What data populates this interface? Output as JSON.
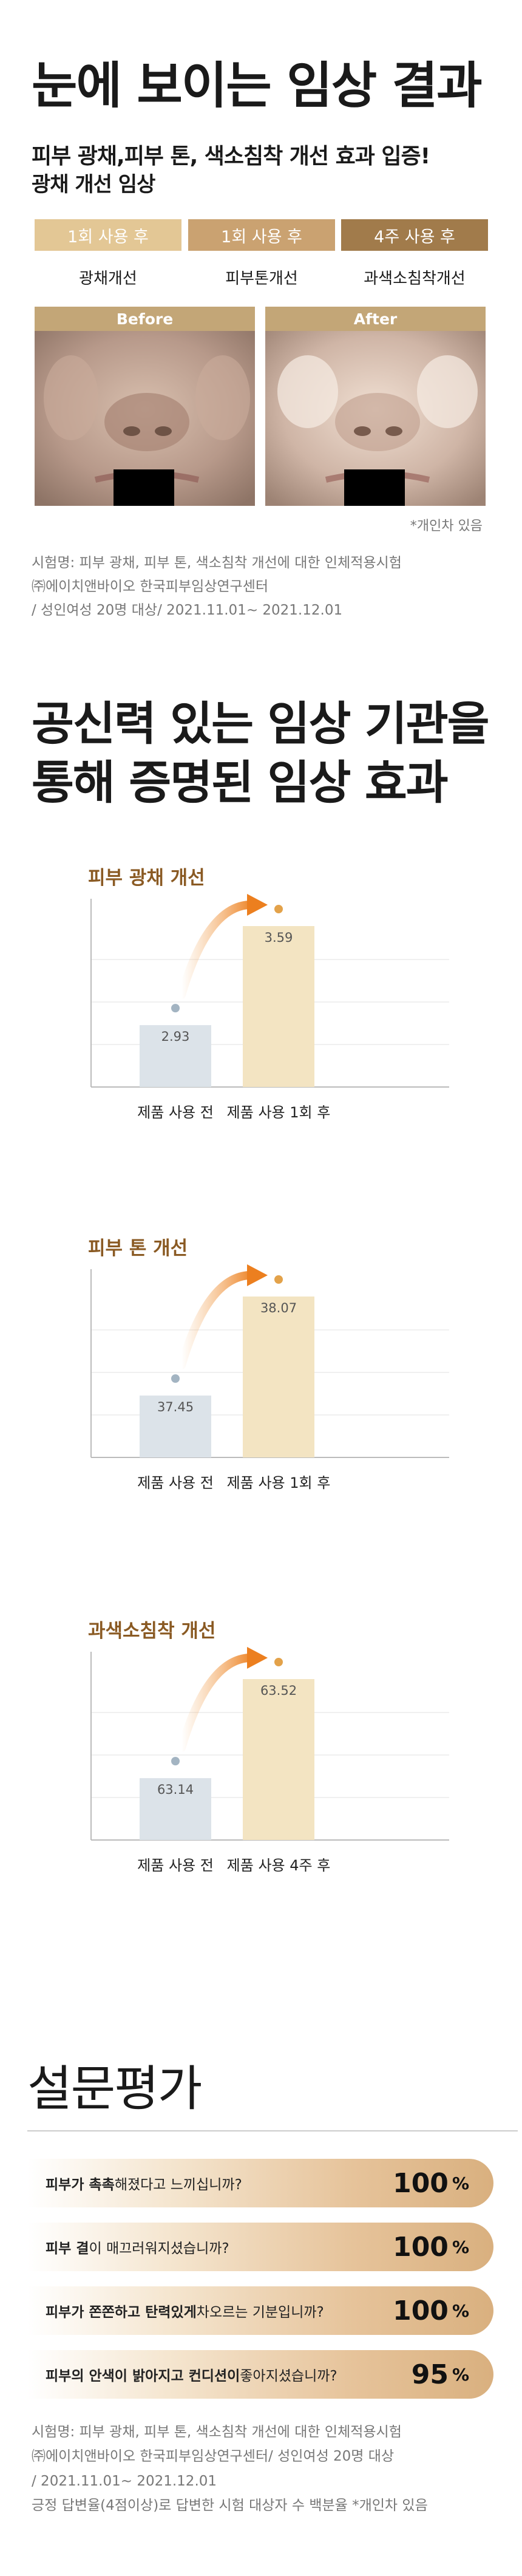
{
  "section1": {
    "title": "눈에 보이는 임상 결과",
    "subtitle": "피부 광채,피부 톤, 색소침착 개선 효과 입증!",
    "subtitle2": "광채 개선 임상",
    "tags": [
      {
        "label": "1회 사용 후",
        "color": "#e3c795",
        "caption": "광채개선"
      },
      {
        "label": "1회 사용 후",
        "color": "#caa271",
        "caption": "피부톤개선"
      },
      {
        "label": "4주 사용 후",
        "color": "#a17b4b",
        "caption": "과색소침착개선"
      }
    ],
    "before_label": "Before",
    "after_label": "After",
    "note": "*개인차 있음",
    "source_lines": [
      "시험명: 피부 광채, 피부 톤, 색소침착 개선에 대한 인체적용시험",
      "㈜에이치앤바이오 한국피부임상연구센터",
      "/ 성인여성 20명 대상/ 2021.11.01~ 2021.12.01"
    ]
  },
  "section2": {
    "title_line1": "공신력 있는 임상 기관을",
    "title_line2": "통해 증명된 임상 효과"
  },
  "chart_data": [
    {
      "type": "bar",
      "title": "피부 광채 개선",
      "categories": [
        "제품 사용 전",
        "제품 사용 1회 후"
      ],
      "values": [
        2.93,
        3.59
      ],
      "colors": [
        "#dce3e9",
        "#f3e4c2"
      ]
    },
    {
      "type": "bar",
      "title": "피부 톤 개선",
      "categories": [
        "제품 사용 전",
        "제품 사용 1회 후"
      ],
      "values": [
        37.45,
        38.07
      ],
      "colors": [
        "#dce3e9",
        "#f3e4c2"
      ]
    },
    {
      "type": "bar",
      "title": "과색소침착 개선",
      "categories": [
        "제품 사용 전",
        "제품 사용 4주 후"
      ],
      "values": [
        63.14,
        63.52
      ],
      "colors": [
        "#dce3e9",
        "#f3e4c2"
      ]
    }
  ],
  "section3": {
    "title": "설문평가",
    "questions": [
      {
        "pre": "피부가 촉촉",
        "mid": "해졌다고 느끼십니까?",
        "post": "",
        "value": "100",
        "unit": "%"
      },
      {
        "pre": "피부 결",
        "mid": "이 매끄러워지셨습니까?",
        "post": "",
        "value": "100",
        "unit": "%"
      },
      {
        "pre": "피부가 쫀쫀하고 탄력있게",
        "mid": " 차오르는 기분입니까?",
        "post": "",
        "value": "100",
        "unit": "%"
      },
      {
        "pre": "피부의 안색이 밝아지고 컨디션이",
        "mid": " 좋아지셨습니까?",
        "post": "",
        "value": "95",
        "unit": "%"
      }
    ],
    "source_lines": [
      "시험명: 피부 광채, 피부 톤, 색소침착 개선에 대한 인체적용시험",
      "㈜에이치앤바이오 한국피부임상연구센터/ 성인여성 20명 대상",
      "/ 2021.11.01~ 2021.12.01",
      "긍정 답변율(4점이상)로 답변한 시험 대상자 수 백분율 *개인차 있음"
    ]
  }
}
